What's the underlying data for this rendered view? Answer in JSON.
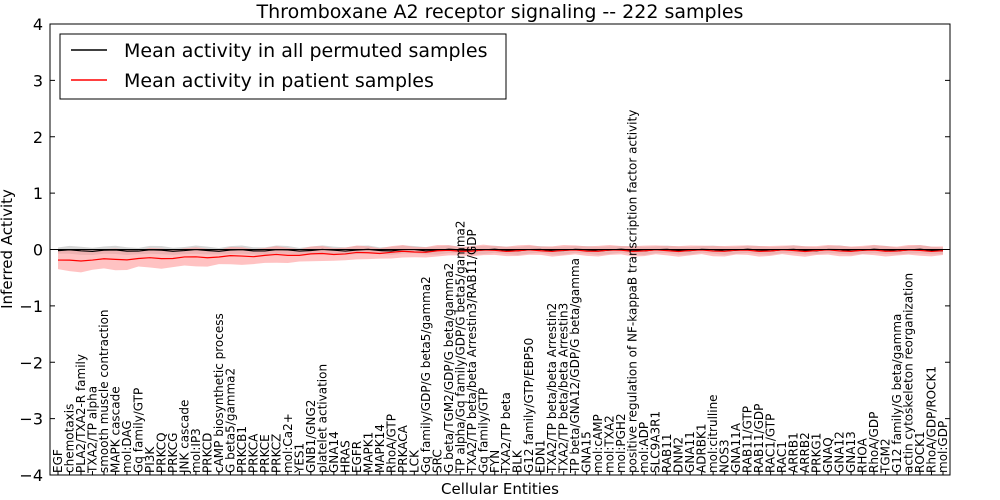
{
  "chart_data": {
    "type": "line",
    "title": "Thromboxane A2 receptor signaling -- 222 samples",
    "xlabel": "Cellular Entities",
    "ylabel": "Inferred Activity",
    "ylim": [
      -4,
      4
    ],
    "yticks": [
      "4",
      "3",
      "2",
      "1",
      "0",
      "−1",
      "−2",
      "−3",
      "−4"
    ],
    "grid": false,
    "legend_position": "top-left",
    "categories": [
      "EGF",
      "chemotaxis",
      "PLA2/TXA2-R family",
      "TXA2/TP alpha",
      "smooth muscle contraction",
      "MAPK cascade",
      "mol:DAG",
      "Gq family/GTP",
      "PI3K",
      "PRKCQ",
      "PRKCG",
      "JNK cascade",
      "mol:IP3",
      "PRKCD",
      "cAMP biosynthetic process",
      "G beta5/gamma2",
      "PRKCB1",
      "PRKCA",
      "PRKCE",
      "PRKCZ",
      "mol:Ca2+",
      "YES1",
      "GNB1/GNG2",
      "platelet activation",
      "GNA14",
      "HRAS",
      "EGFR",
      "MAPK1",
      "MAPK14",
      "RhoA/GTP",
      "PRKACA",
      "LCK",
      "Gq family/GDP/G beta5/gamma2",
      "SRC",
      "G beta/TGM2/GDP/G beta/gamma2",
      "TP alpha/Gq family/GDP/G beta5/gamma2",
      "TXA2/TP beta/beta Arrestin3/RAB11/GDP",
      "Gq family/GTP",
      "FYN",
      "TXA2/TP beta",
      "BLK",
      "G12 family/GTP/EBP50",
      "EDN1",
      "TXA2/TP beta/beta Arrestin2",
      "TXA2/TP beta/beta Arrestin3",
      "TP beta/GNA12/GDP/G beta/gamma",
      "GNA15",
      "mol:cAMP",
      "mol:TXA2",
      "mol:PGH2",
      "positive regulation of NF-kappaB transcription factor activity",
      "mol:ADP",
      "SLC9A3R1",
      "RAB11",
      "DNM2",
      "GNA11",
      "ADRBK1",
      "mol:citrulline",
      "NOS3",
      "GNA11A",
      "RAB11/GTP",
      "RAB11/GDP",
      "RAC1/GTP",
      "RAC1",
      "ARRB1",
      "ARRB2",
      "PRKG1",
      "GNAQ",
      "GNA12",
      "GNA13",
      "RHOA",
      "RhoA/GDP",
      "TGM2",
      "G12 family/G beta/gamma",
      "actin cytoskeleton reorganization",
      "ROCK1",
      "RhoA/GDP/ROCK1",
      "mol:GDP"
    ],
    "series": [
      {
        "name": "Mean activity in all permuted samples",
        "color": "#000000",
        "band_color": "#bbbbbb",
        "values_start": -0.02,
        "values_end": -0.01,
        "band_halfwidth": 0.07
      },
      {
        "name": "Mean activity in patient samples",
        "color": "#ff0000",
        "band_color": "#ff9999",
        "values_start": -0.2,
        "values_end": -0.02,
        "band_halfwidth": 0.2
      }
    ]
  }
}
